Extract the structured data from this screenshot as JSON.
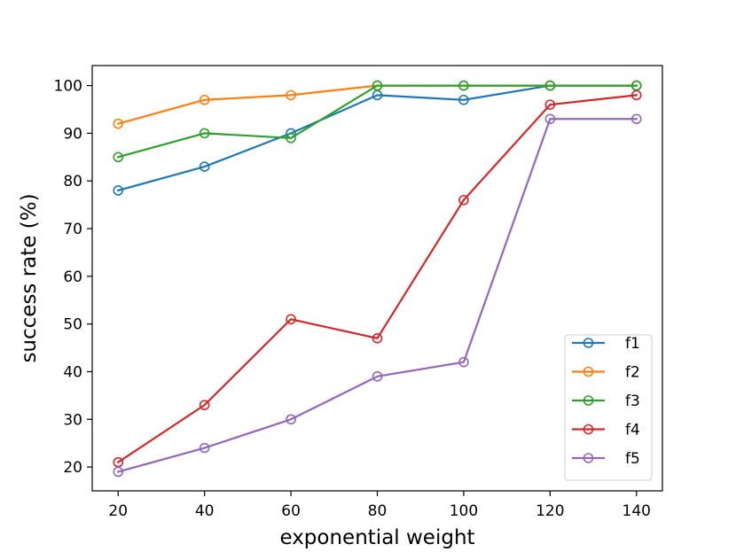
{
  "chart_data": {
    "type": "line",
    "title": "",
    "xlabel": "exponential weight",
    "ylabel": "success rate (%)",
    "x": [
      20,
      40,
      60,
      80,
      100,
      120,
      140
    ],
    "xlim": [
      14,
      146
    ],
    "ylim": [
      15,
      104.2
    ],
    "xticks": [
      "20",
      "40",
      "60",
      "80",
      "100",
      "120",
      "140"
    ],
    "yticks": [
      "20",
      "30",
      "40",
      "50",
      "60",
      "70",
      "80",
      "90",
      "100"
    ],
    "grid": false,
    "legend_position": "bottom-right",
    "marker": "open-circle",
    "series": [
      {
        "name": "f1",
        "color": "#1f77b4",
        "values": [
          78,
          83,
          90,
          98,
          97,
          100,
          100
        ]
      },
      {
        "name": "f2",
        "color": "#ff7f0e",
        "values": [
          92,
          97,
          98,
          100,
          100,
          100,
          100
        ]
      },
      {
        "name": "f3",
        "color": "#2ca02c",
        "values": [
          85,
          90,
          89,
          100,
          100,
          100,
          100
        ]
      },
      {
        "name": "f4",
        "color": "#d62728",
        "values": [
          21,
          33,
          51,
          47,
          76,
          96,
          98
        ]
      },
      {
        "name": "f5",
        "color": "#9467bd",
        "values": [
          19,
          24,
          30,
          39,
          42,
          93,
          93
        ]
      }
    ]
  }
}
